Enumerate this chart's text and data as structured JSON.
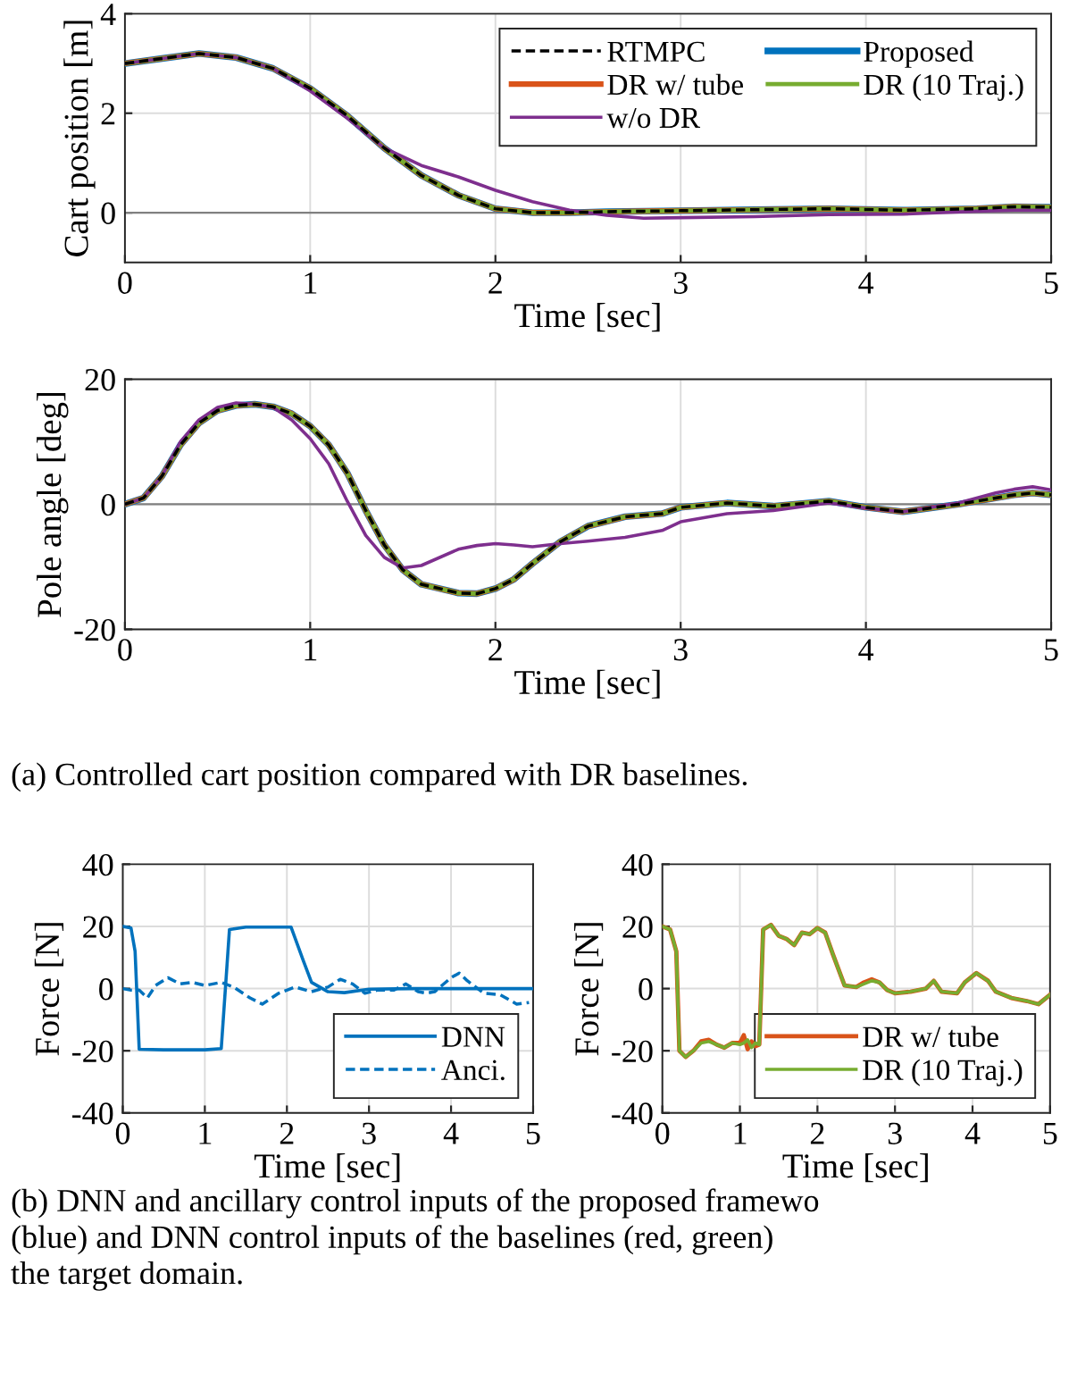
{
  "chart_data": [
    {
      "type": "line",
      "ylabel": "Cart position [m]",
      "xlabel": "Time [sec]",
      "xlim": [
        0,
        5
      ],
      "xticks": [
        0,
        1,
        2,
        3,
        4,
        5
      ],
      "ylim": [
        -1,
        4
      ],
      "yticks": [
        0,
        2,
        4
      ],
      "grid": true,
      "legend": "top right",
      "marker": "none",
      "ref_lines": [
        {
          "axis": "y",
          "value": 0,
          "color": "#808080"
        }
      ],
      "x": [
        0,
        0.2,
        0.4,
        0.6,
        0.8,
        1.0,
        1.2,
        1.4,
        1.6,
        1.8,
        2.0,
        2.2,
        2.4,
        2.6,
        2.8,
        3.0,
        3.4,
        3.8,
        4.2,
        4.6,
        4.8,
        5.0
      ],
      "series": [
        {
          "name": "RTMPC",
          "color": "#000000",
          "line_style": "dashed",
          "values": [
            3.0,
            3.1,
            3.2,
            3.12,
            2.9,
            2.5,
            1.95,
            1.3,
            0.75,
            0.35,
            0.08,
            0.0,
            0.0,
            0.02,
            0.03,
            0.04,
            0.06,
            0.08,
            0.05,
            0.08,
            0.12,
            0.11
          ]
        },
        {
          "name": "Proposed",
          "color": "#0072bd",
          "line_style": "solid",
          "values": [
            3.0,
            3.1,
            3.2,
            3.12,
            2.9,
            2.5,
            1.95,
            1.3,
            0.75,
            0.35,
            0.08,
            0.0,
            0.0,
            0.02,
            0.03,
            0.04,
            0.06,
            0.08,
            0.05,
            0.08,
            0.12,
            0.11
          ]
        },
        {
          "name": "DR w/ tube",
          "color": "#d95319",
          "line_style": "solid",
          "values": [
            3.0,
            3.1,
            3.2,
            3.12,
            2.9,
            2.5,
            1.95,
            1.3,
            0.75,
            0.35,
            0.08,
            0.0,
            0.0,
            0.02,
            0.03,
            0.04,
            0.06,
            0.08,
            0.05,
            0.08,
            0.12,
            0.11
          ]
        },
        {
          "name": "DR (10 Traj.)",
          "color": "#77ac30",
          "line_style": "solid",
          "values": [
            3.0,
            3.1,
            3.2,
            3.12,
            2.9,
            2.5,
            1.95,
            1.3,
            0.75,
            0.35,
            0.08,
            0.0,
            0.0,
            0.02,
            0.03,
            0.04,
            0.06,
            0.08,
            0.05,
            0.08,
            0.12,
            0.11
          ]
        },
        {
          "name": "w/o DR",
          "color": "#7e2f8e",
          "line_style": "solid",
          "values": [
            3.0,
            3.1,
            3.2,
            3.12,
            2.9,
            2.45,
            1.9,
            1.3,
            0.95,
            0.72,
            0.45,
            0.22,
            0.05,
            -0.05,
            -0.11,
            -0.1,
            -0.08,
            -0.04,
            -0.03,
            0.03,
            0.05,
            0.05
          ]
        }
      ]
    },
    {
      "type": "line",
      "ylabel": "Pole angle [deg]",
      "xlabel": "Time [sec]",
      "xlim": [
        0,
        5
      ],
      "xticks": [
        0,
        1,
        2,
        3,
        4,
        5
      ],
      "ylim": [
        -20,
        20
      ],
      "yticks": [
        -20,
        0,
        20
      ],
      "grid": true,
      "marker": "none",
      "ref_lines": [
        {
          "axis": "y",
          "value": 0,
          "color": "#808080"
        }
      ],
      "annotations": [
        "(a) Controlled cart position compared with DR baselines."
      ],
      "x": [
        0,
        0.1,
        0.2,
        0.3,
        0.4,
        0.5,
        0.6,
        0.7,
        0.8,
        0.9,
        1.0,
        1.1,
        1.2,
        1.3,
        1.4,
        1.5,
        1.6,
        1.8,
        1.9,
        2.0,
        2.1,
        2.2,
        2.35,
        2.5,
        2.7,
        2.9,
        3.0,
        3.25,
        3.5,
        3.8,
        4.0,
        4.2,
        4.5,
        4.7,
        4.8,
        4.9,
        5.0
      ],
      "series": [
        {
          "color": "#0072bd",
          "line_style": "solid",
          "values": [
            0,
            1,
            4.5,
            9.5,
            13,
            15,
            15.8,
            16,
            15.6,
            14.5,
            12.5,
            9.5,
            5,
            -1,
            -6.5,
            -10.5,
            -12.8,
            -14.2,
            -14.3,
            -13.5,
            -12,
            -9.5,
            -6,
            -3.5,
            -2,
            -1.5,
            -0.5,
            0.2,
            -0.3,
            0.5,
            -0.5,
            -1.2,
            0,
            1.0,
            1.5,
            1.8,
            1.5
          ]
        },
        {
          "color": "#d95319",
          "line_style": "solid",
          "values": [
            0,
            1,
            4.5,
            9.5,
            13,
            15,
            15.8,
            16,
            15.6,
            14.5,
            12.5,
            9.5,
            5,
            -1,
            -6.5,
            -10.5,
            -12.8,
            -14.2,
            -14.3,
            -13.5,
            -12,
            -9.5,
            -6,
            -3.5,
            -2,
            -1.5,
            -0.5,
            0.2,
            -0.3,
            0.5,
            -0.5,
            -1.2,
            0,
            1.0,
            1.5,
            1.8,
            1.5
          ]
        },
        {
          "color": "#77ac30",
          "line_style": "solid",
          "values": [
            0,
            1,
            4.5,
            9.5,
            13,
            15,
            15.8,
            16,
            15.6,
            14.5,
            12.5,
            9.5,
            5,
            -1,
            -6.5,
            -10.5,
            -12.8,
            -14.2,
            -14.3,
            -13.5,
            -12,
            -9.5,
            -6,
            -3.5,
            -2,
            -1.5,
            -0.5,
            0.2,
            -0.3,
            0.5,
            -0.5,
            -1.2,
            0,
            1.0,
            1.5,
            1.8,
            1.5
          ]
        },
        {
          "color": "#7e2f8e",
          "line_style": "solid",
          "values": [
            0,
            1,
            4.5,
            10,
            13.5,
            15.5,
            16.2,
            16,
            15.5,
            13.5,
            10.5,
            6.5,
            0.5,
            -5,
            -8.5,
            -10.2,
            -9.8,
            -7.2,
            -6.6,
            -6.3,
            -6.5,
            -6.8,
            -6.3,
            -5.9,
            -5.3,
            -4.2,
            -2.8,
            -1.5,
            -1,
            0.2,
            -0.6,
            -1.2,
            0.2,
            1.8,
            2.4,
            2.8,
            2.3
          ]
        },
        {
          "color": "#000000",
          "line_style": "dashed",
          "values": [
            0,
            1,
            4.5,
            9.5,
            13,
            15,
            15.8,
            16,
            15.6,
            14.5,
            12.5,
            9.5,
            5,
            -1,
            -6.5,
            -10.5,
            -12.8,
            -14.2,
            -14.3,
            -13.5,
            -12,
            -9.5,
            -6,
            -3.5,
            -2,
            -1.5,
            -0.5,
            0.2,
            -0.3,
            0.5,
            -0.5,
            -1.2,
            0,
            1.0,
            1.5,
            1.8,
            1.5
          ]
        }
      ]
    },
    {
      "type": "line",
      "ylabel": "Force [N]",
      "xlabel": "Time [sec]",
      "xlim": [
        0,
        5
      ],
      "xticks": [
        0,
        1,
        2,
        3,
        4,
        5
      ],
      "ylim": [
        -40,
        40
      ],
      "yticks": [
        -40,
        -20,
        0,
        20,
        40
      ],
      "grid": true,
      "legend": "bottom right",
      "marker": "none",
      "annotations": [
        "(b) DNN and ancillary control inputs of the proposed framewo\n(blue) and DNN control inputs of the baselines (red, green)\nthe target domain."
      ],
      "series": [
        {
          "name": "DNN",
          "color": "#0072bd",
          "line_style": "solid",
          "x": [
            0,
            0.1,
            0.15,
            0.2,
            0.5,
            1.0,
            1.2,
            1.3,
            1.5,
            2.05,
            2.2,
            2.3,
            2.5,
            2.7,
            3.0,
            3.5,
            5.0
          ],
          "values": [
            20,
            19.5,
            12,
            -19.5,
            -19.7,
            -19.7,
            -19.3,
            19,
            19.8,
            19.8,
            9,
            2,
            -1,
            -1.3,
            -0.2,
            0,
            0
          ]
        },
        {
          "name": "Anci.",
          "color": "#0072bd",
          "line_style": "dashed",
          "x": [
            0,
            0.1,
            0.2,
            0.3,
            0.4,
            0.55,
            0.7,
            0.85,
            1.0,
            1.2,
            1.35,
            1.55,
            1.7,
            1.9,
            2.1,
            2.3,
            2.5,
            2.65,
            2.8,
            2.95,
            3.1,
            3.3,
            3.45,
            3.6,
            3.7,
            3.8,
            4.0,
            4.1,
            4.2,
            4.4,
            4.6,
            4.8,
            4.95
          ],
          "values": [
            0,
            -0.5,
            -0.5,
            -3,
            1,
            3.5,
            1.5,
            2,
            1,
            2,
            0.5,
            -3,
            -5,
            -1.5,
            0.5,
            -1,
            0.5,
            3,
            1.5,
            -1.5,
            -0.5,
            -0.5,
            1.5,
            -1,
            -1.5,
            -1,
            3.5,
            5,
            2.5,
            -1.5,
            -2,
            -5,
            -4.5
          ]
        }
      ]
    },
    {
      "type": "line",
      "ylabel": "Force [N]",
      "xlabel": "Time [sec]",
      "xlim": [
        0,
        5
      ],
      "xticks": [
        0,
        1,
        2,
        3,
        4,
        5
      ],
      "ylim": [
        -40,
        40
      ],
      "yticks": [
        -40,
        -20,
        0,
        20,
        40
      ],
      "grid": true,
      "legend": "bottom right",
      "marker": "none",
      "x": [
        0,
        0.1,
        0.18,
        0.22,
        0.3,
        0.4,
        0.5,
        0.6,
        0.7,
        0.8,
        0.9,
        1.0,
        1.05,
        1.1,
        1.15,
        1.2,
        1.25,
        1.3,
        1.4,
        1.5,
        1.6,
        1.7,
        1.8,
        1.9,
        2.0,
        2.1,
        2.2,
        2.35,
        2.5,
        2.6,
        2.7,
        2.8,
        2.9,
        3.0,
        3.2,
        3.4,
        3.5,
        3.6,
        3.8,
        3.9,
        4.05,
        4.2,
        4.3,
        4.5,
        4.7,
        4.85,
        5.0
      ],
      "series": [
        {
          "name": "DR w/ tube",
          "color": "#d95319",
          "line_style": "solid",
          "values": [
            20,
            19,
            12,
            -20,
            -22,
            -20,
            -17,
            -16.5,
            -18,
            -19,
            -17.5,
            -17.5,
            -15,
            -19.5,
            -17,
            -18.5,
            -18,
            19,
            20.5,
            17,
            16,
            14,
            18,
            17.5,
            19.5,
            18,
            11,
            1,
            0.5,
            2,
            3,
            2,
            -0.5,
            -1.5,
            -1,
            0,
            2.5,
            -1,
            -1.5,
            2,
            5,
            2.5,
            -1,
            -3,
            -4,
            -5,
            -2
          ]
        },
        {
          "name": "DR (10 Traj.)",
          "color": "#77ac30",
          "line_style": "solid",
          "values": [
            20,
            19,
            12,
            -20,
            -22,
            -20,
            -17.5,
            -17,
            -18,
            -19,
            -17.5,
            -18,
            -17.5,
            -16.5,
            -19,
            -17.5,
            -18,
            19,
            20.5,
            17,
            16,
            14,
            18,
            17.5,
            19.5,
            18,
            11,
            1,
            0.5,
            1.5,
            2.5,
            2,
            -0.5,
            -1.5,
            -1,
            0,
            2.5,
            -1,
            -1.5,
            2,
            5,
            2.5,
            -1,
            -3,
            -4,
            -5,
            -2
          ]
        }
      ]
    }
  ]
}
